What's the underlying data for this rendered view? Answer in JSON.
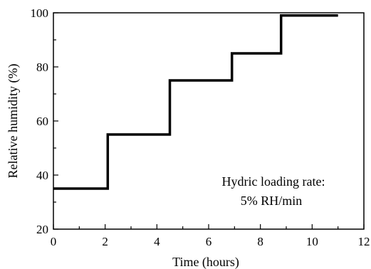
{
  "chart_data": {
    "type": "line",
    "xlabel": "Time (hours)",
    "ylabel": "Relative humidity (%)",
    "xlim": [
      0,
      12
    ],
    "ylim": [
      20,
      100
    ],
    "x_ticks": [
      0,
      2,
      4,
      6,
      8,
      10,
      12
    ],
    "y_ticks": [
      20,
      40,
      60,
      80,
      100
    ],
    "grid": false,
    "line_color": "#000000",
    "series": [
      {
        "x": [
          0,
          2.1,
          2.1,
          4.5,
          4.5,
          6.9,
          6.9,
          8.8,
          8.8,
          11
        ],
        "y": [
          35,
          35,
          55,
          55,
          75,
          75,
          85,
          85,
          99,
          99
        ]
      }
    ],
    "annotation": [
      "Hydric loading rate:",
      "5% RH/min"
    ]
  }
}
